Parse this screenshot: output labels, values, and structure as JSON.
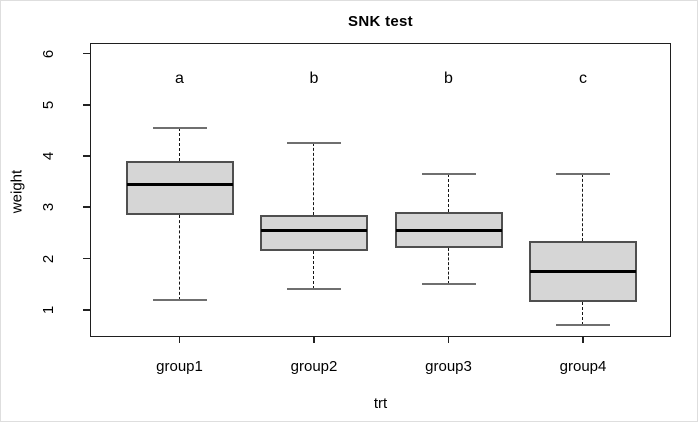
{
  "chart_data": {
    "type": "boxplot",
    "title": "SNK test",
    "xlabel": "trt",
    "ylabel": "weight",
    "categories": [
      "group1",
      "group2",
      "group3",
      "group4"
    ],
    "yticks": [
      1,
      2,
      3,
      4,
      5,
      6
    ],
    "ylim": [
      0.45,
      6.2
    ],
    "grid": false,
    "legend": "none",
    "letter_y": 5.5,
    "series": [
      {
        "name": "group1",
        "letter": "a",
        "min": 1.2,
        "q1": 2.85,
        "median": 3.45,
        "q3": 3.9,
        "max": 4.55
      },
      {
        "name": "group2",
        "letter": "b",
        "min": 1.4,
        "q1": 2.15,
        "median": 2.55,
        "q3": 2.85,
        "max": 4.25
      },
      {
        "name": "group3",
        "letter": "b",
        "min": 1.5,
        "q1": 2.2,
        "median": 2.55,
        "q3": 2.9,
        "max": 3.65
      },
      {
        "name": "group4",
        "letter": "c",
        "min": 0.7,
        "q1": 1.15,
        "median": 1.75,
        "q3": 2.35,
        "max": 3.65
      }
    ],
    "colors": {
      "box_fill": "#d6d6d6",
      "box_border": "#4f4f4f",
      "median": "#000000",
      "whisker": "#151515",
      "cap": "#6f6f6f",
      "frame": "#1f1f1f",
      "text": "#000000",
      "background": "#ffffff"
    }
  }
}
